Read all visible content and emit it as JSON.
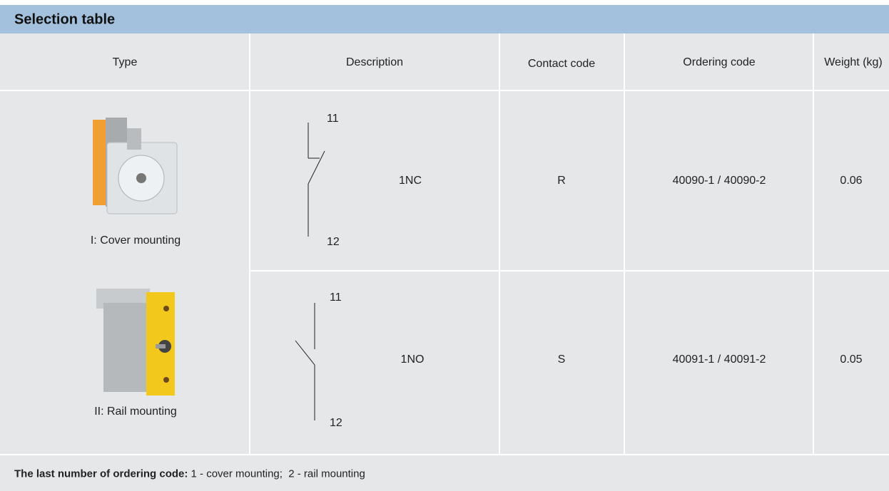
{
  "header": {
    "title": "Selection table"
  },
  "table": {
    "columns": [
      "Type",
      "Description",
      "Contact code",
      "Ordering code",
      "Weight (kg)"
    ],
    "rows": [
      {
        "type": "I: Cover mounting",
        "terminal_top": "11",
        "terminal_bottom": "12",
        "description": "1NC",
        "contact_code": "R",
        "ordering_code": "40090-1 / 40090-2",
        "weight": 0.06
      },
      {
        "type": "II: Rail mounting",
        "terminal_top": "11",
        "terminal_bottom": "12",
        "description": "1NO",
        "contact_code": "S",
        "ordering_code": "40091-1 / 40091-2",
        "weight": 0.05
      }
    ]
  },
  "footnote": {
    "label": "The last number of ordering code:",
    "text": "1 - cover mounting;  2 - rail mounting"
  }
}
